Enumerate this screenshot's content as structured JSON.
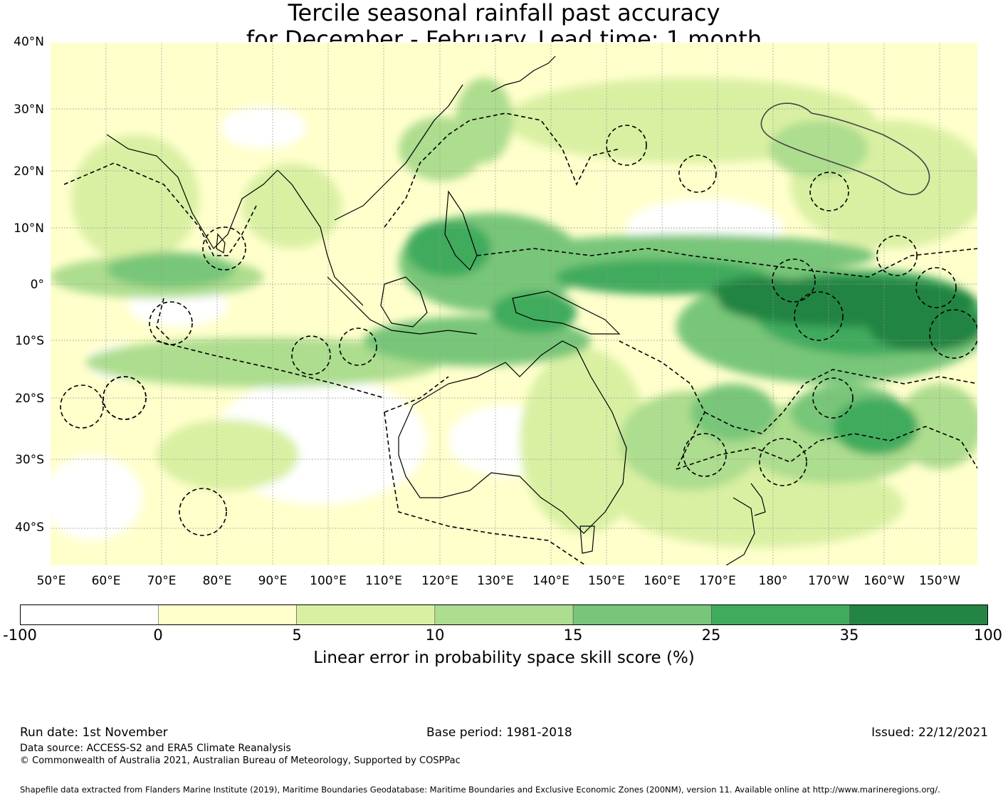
{
  "title": {
    "line1": "Tercile seasonal rainfall past accuracy",
    "line2": "for December - February. Lead time: 1 month"
  },
  "axes": {
    "lat_labels": [
      "40°N",
      "30°N",
      "20°N",
      "10°N",
      "0°",
      "10°S",
      "20°S",
      "30°S",
      "40°S"
    ],
    "lon_labels": [
      "50°E",
      "60°E",
      "70°E",
      "80°E",
      "90°E",
      "100°E",
      "110°E",
      "120°E",
      "130°E",
      "140°E",
      "150°E",
      "160°E",
      "170°E",
      "180°",
      "170°W",
      "160°W",
      "150°W"
    ],
    "lat_range": [
      -46,
      40
    ],
    "lon_range": [
      50,
      217
    ]
  },
  "colorbar": {
    "ticks": [
      "-100",
      "0",
      "5",
      "10",
      "15",
      "25",
      "35",
      "100"
    ],
    "colors": [
      "#ffffff",
      "#ffffcc",
      "#d9f0a3",
      "#addd8e",
      "#78c679",
      "#41ab5d",
      "#238443"
    ],
    "label": "Linear error in probability space skill score (%)"
  },
  "footer": {
    "run_date": "Run date: 1st November",
    "base_period": "Base period: 1981-2018",
    "issued": "Issued: 22/12/2021",
    "data_source": "Data source: ACCESS-S2 and ERA5 Climate Reanalysis",
    "copyright": "© Commonwealth of Australia 2021, Australian Bureau of Meteorology, Supported by COSPPac",
    "shapefile": "Shapefile data extracted from Flanders Marine Institute (2019), Maritime Boundaries Geodatabase: Maritime Boundaries and Exclusive Economic Zones (200NM), version 11. Available online at http://www.marineregions.org/."
  }
}
